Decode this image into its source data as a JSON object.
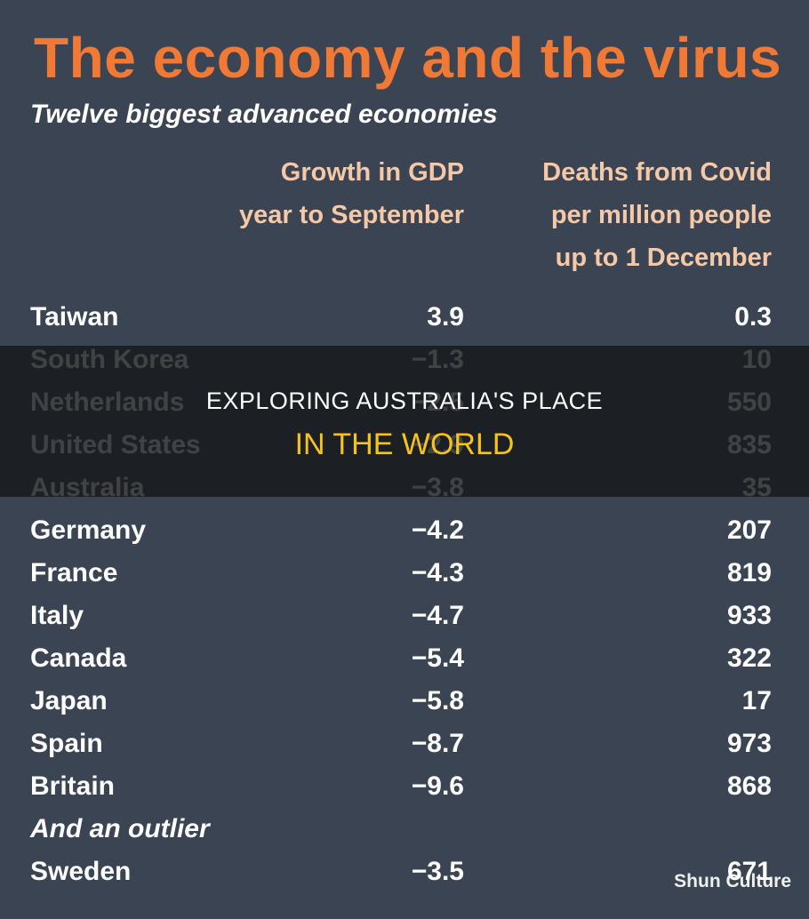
{
  "title": "The economy and the virus",
  "subtitle": "Twelve biggest advanced economies",
  "columns": {
    "gdp": [
      "Growth in GDP",
      "year to September"
    ],
    "deaths": [
      "Deaths from Covid",
      "per million people",
      "up to 1 December"
    ]
  },
  "outlier_label": "And an outlier",
  "overlay": {
    "line1": "EXPLORING AUSTRALIA'S PLACE",
    "line2": "IN THE WORLD"
  },
  "watermark": "Shun Culture",
  "chart_data": {
    "type": "table",
    "title": "The economy and the virus",
    "subtitle": "Twelve biggest advanced economies",
    "columns": [
      "Growth in GDP year to September",
      "Deaths from Covid per million people up to 1 December"
    ],
    "rows": [
      {
        "country": "Taiwan",
        "gdp": "3.9",
        "deaths": "0.3"
      },
      {
        "country": "South Korea",
        "gdp": "−1.3",
        "deaths": "10"
      },
      {
        "country": "Netherlands",
        "gdp": "−2.5",
        "deaths": "550"
      },
      {
        "country": "United States",
        "gdp": "−2.9",
        "deaths": "835"
      },
      {
        "country": "Australia",
        "gdp": "−3.8",
        "deaths": "35"
      },
      {
        "country": "Germany",
        "gdp": "−4.2",
        "deaths": "207"
      },
      {
        "country": "France",
        "gdp": "−4.3",
        "deaths": "819"
      },
      {
        "country": "Italy",
        "gdp": "−4.7",
        "deaths": "933"
      },
      {
        "country": "Canada",
        "gdp": "−5.4",
        "deaths": "322"
      },
      {
        "country": "Japan",
        "gdp": "−5.8",
        "deaths": "17"
      },
      {
        "country": "Spain",
        "gdp": "−8.7",
        "deaths": "973"
      },
      {
        "country": "Britain",
        "gdp": "−9.6",
        "deaths": "868"
      }
    ],
    "outlier": {
      "country": "Sweden",
      "gdp": "−3.5",
      "deaths": "671"
    }
  }
}
